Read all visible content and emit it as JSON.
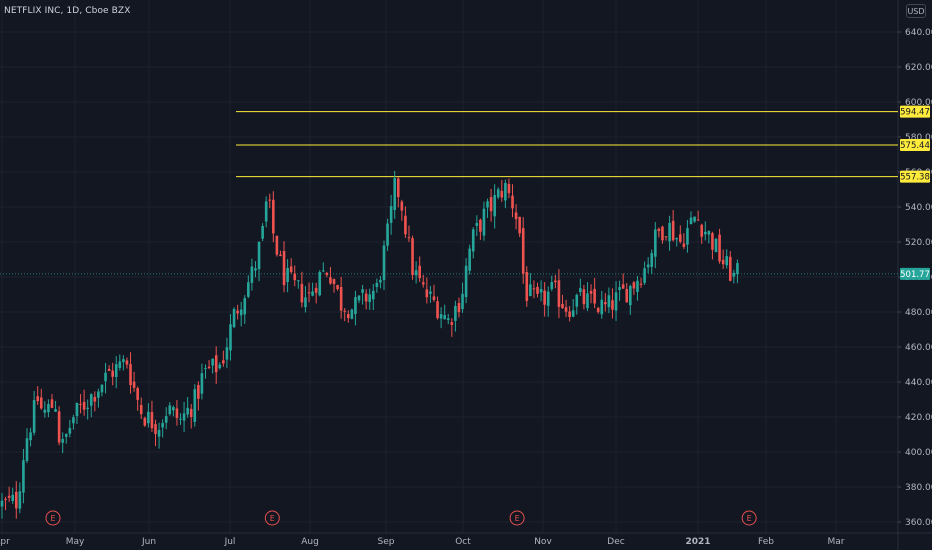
{
  "header": {
    "symbol_title": "NETFLIX INC, 1D, Cboe BZX"
  },
  "currency": {
    "label": "USD"
  },
  "colors": {
    "background": "#131722",
    "up": "#26a69a",
    "down": "#ef5350",
    "level_line": "#ffeb3b",
    "earnings": "#e8504f",
    "grid": "#1e222d"
  },
  "chart_data": {
    "type": "candlestick",
    "title": "NETFLIX INC, 1D, Cboe BZX",
    "y_axis": {
      "ticks": [
        360,
        380,
        400,
        420,
        440,
        460,
        480,
        500,
        520,
        540,
        560,
        580,
        600,
        620,
        640
      ],
      "tick_labels": [
        "360.00",
        "380.00",
        "400.00",
        "420.00",
        "440.00",
        "460.00",
        "480.00",
        "500.00",
        "520.00",
        "540.00",
        "560.00",
        "580.00",
        "600.00",
        "620.00",
        "640.00"
      ],
      "ylim": [
        357,
        648
      ]
    },
    "x_axis": {
      "labels": [
        "Apr",
        "May",
        "Jun",
        "Jul",
        "Aug",
        "Sep",
        "Oct",
        "Nov",
        "Dec",
        "2021",
        "Feb",
        "Mar"
      ]
    },
    "current_price": {
      "value": 501.77,
      "label": "501.77"
    },
    "horizontal_levels": [
      {
        "value": 594.47,
        "label": "594.47"
      },
      {
        "value": 575.44,
        "label": "575.44"
      },
      {
        "value": 557.38,
        "label": "557.38"
      }
    ],
    "earnings_markers": {
      "letter": "E",
      "dates": [
        "2020-04-21",
        "2020-07-16",
        "2020-10-20",
        "2021-01-19"
      ]
    },
    "close_path": [
      [
        "2020-04-01",
        370
      ],
      [
        "2020-04-07",
        372
      ],
      [
        "2020-04-10",
        405
      ],
      [
        "2020-04-15",
        430
      ],
      [
        "2020-04-17",
        422
      ],
      [
        "2020-04-22",
        428
      ],
      [
        "2020-04-24",
        400
      ],
      [
        "2020-04-29",
        420
      ],
      [
        "2020-05-06",
        432
      ],
      [
        "2020-05-13",
        445
      ],
      [
        "2020-05-20",
        452
      ],
      [
        "2020-05-22",
        440
      ],
      [
        "2020-05-26",
        422
      ],
      [
        "2020-06-01",
        415
      ],
      [
        "2020-06-05",
        425
      ],
      [
        "2020-06-10",
        418
      ],
      [
        "2020-06-16",
        430
      ],
      [
        "2020-06-19",
        445
      ],
      [
        "2020-06-26",
        450
      ],
      [
        "2020-07-01",
        478
      ],
      [
        "2020-07-06",
        495
      ],
      [
        "2020-07-09",
        505
      ],
      [
        "2020-07-13",
        530
      ],
      [
        "2020-07-14",
        548
      ],
      [
        "2020-07-16",
        527
      ],
      [
        "2020-07-20",
        502
      ],
      [
        "2020-07-24",
        495
      ],
      [
        "2020-07-30",
        488
      ],
      [
        "2020-08-03",
        500
      ],
      [
        "2020-08-07",
        505
      ],
      [
        "2020-08-12",
        485
      ],
      [
        "2020-08-17",
        482
      ],
      [
        "2020-08-21",
        488
      ],
      [
        "2020-08-26",
        493
      ],
      [
        "2020-08-31",
        530
      ],
      [
        "2020-09-02",
        550
      ],
      [
        "2020-09-04",
        548
      ],
      [
        "2020-09-09",
        505
      ],
      [
        "2020-09-14",
        490
      ],
      [
        "2020-09-18",
        485
      ],
      [
        "2020-09-23",
        475
      ],
      [
        "2020-09-28",
        488
      ],
      [
        "2020-09-30",
        505
      ],
      [
        "2020-10-02",
        520
      ],
      [
        "2020-10-07",
        535
      ],
      [
        "2020-10-12",
        545
      ],
      [
        "2020-10-15",
        552
      ],
      [
        "2020-10-19",
        540
      ],
      [
        "2020-10-21",
        525
      ],
      [
        "2020-10-23",
        492
      ],
      [
        "2020-10-28",
        485
      ],
      [
        "2020-11-03",
        492
      ],
      [
        "2020-11-09",
        482
      ],
      [
        "2020-11-13",
        488
      ],
      [
        "2020-11-18",
        485
      ],
      [
        "2020-11-24",
        482
      ],
      [
        "2020-11-30",
        490
      ],
      [
        "2020-12-04",
        495
      ],
      [
        "2020-12-09",
        505
      ],
      [
        "2020-12-14",
        525
      ],
      [
        "2020-12-18",
        530
      ],
      [
        "2020-12-23",
        520
      ],
      [
        "2020-12-29",
        535
      ],
      [
        "2021-01-04",
        522
      ],
      [
        "2021-01-08",
        510
      ],
      [
        "2021-01-13",
        500
      ],
      [
        "2021-01-15",
        501.77
      ]
    ]
  }
}
